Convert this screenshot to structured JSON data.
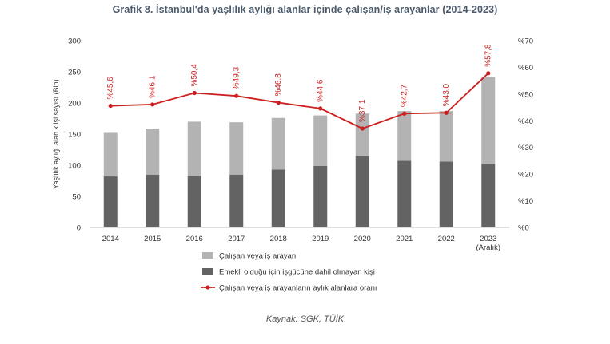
{
  "title": "Grafik 8. İstanbul'da yaşlılık aylığı alanlar içinde çalışan/iş arayanlar (2014-2023)",
  "source": "Kaynak: SGK, TÜİK",
  "chart_data": {
    "type": "bar",
    "stacked": true,
    "categories": [
      "2014",
      "2015",
      "2016",
      "2017",
      "2018",
      "2019",
      "2020",
      "2021",
      "2022",
      "2023"
    ],
    "category_sublabels": [
      "",
      "",
      "",
      "",
      "",
      "",
      "",
      "",
      "",
      "(Aralık)"
    ],
    "ylabel": "Yaşlılık aylığı alan k işi sayısı (Bin)",
    "ylim": [
      0,
      300
    ],
    "yticks": [
      "300",
      "250",
      "200",
      "150",
      "100",
      "50",
      "0"
    ],
    "y2lim": [
      0,
      70
    ],
    "y2ticks": [
      "%70",
      "%60",
      "%50",
      "%40",
      "%30",
      "%20",
      "%10",
      "%0"
    ],
    "series": [
      {
        "name": "Emekli olduğu için işgücüne dahil olmayan kişi",
        "kind": "bar",
        "color": "#636363",
        "values": [
          82,
          85,
          83,
          85,
          93,
          99,
          115,
          107,
          106,
          102
        ]
      },
      {
        "name": "Çalışan veya iş arayan",
        "kind": "bar",
        "color": "#b3b3b3",
        "values": [
          70,
          74,
          87,
          84,
          83,
          81,
          68,
          80,
          81,
          140
        ]
      },
      {
        "name": "Çalışan veya iş arayanların aylık alanlara oranı",
        "kind": "line",
        "axis": "right",
        "color": "#cc1f1f",
        "values": [
          45.6,
          46.1,
          50.4,
          49.3,
          46.8,
          44.6,
          37.1,
          42.7,
          43.0,
          57.8
        ],
        "labels": [
          "%45,6",
          "%46,1",
          "%50,4",
          "%49,3",
          "%46,8",
          "%44,6",
          "%37,1",
          "%42,7",
          "%43,0",
          "%57,8"
        ]
      }
    ],
    "grid": false,
    "legend_position": "bottom-left"
  }
}
